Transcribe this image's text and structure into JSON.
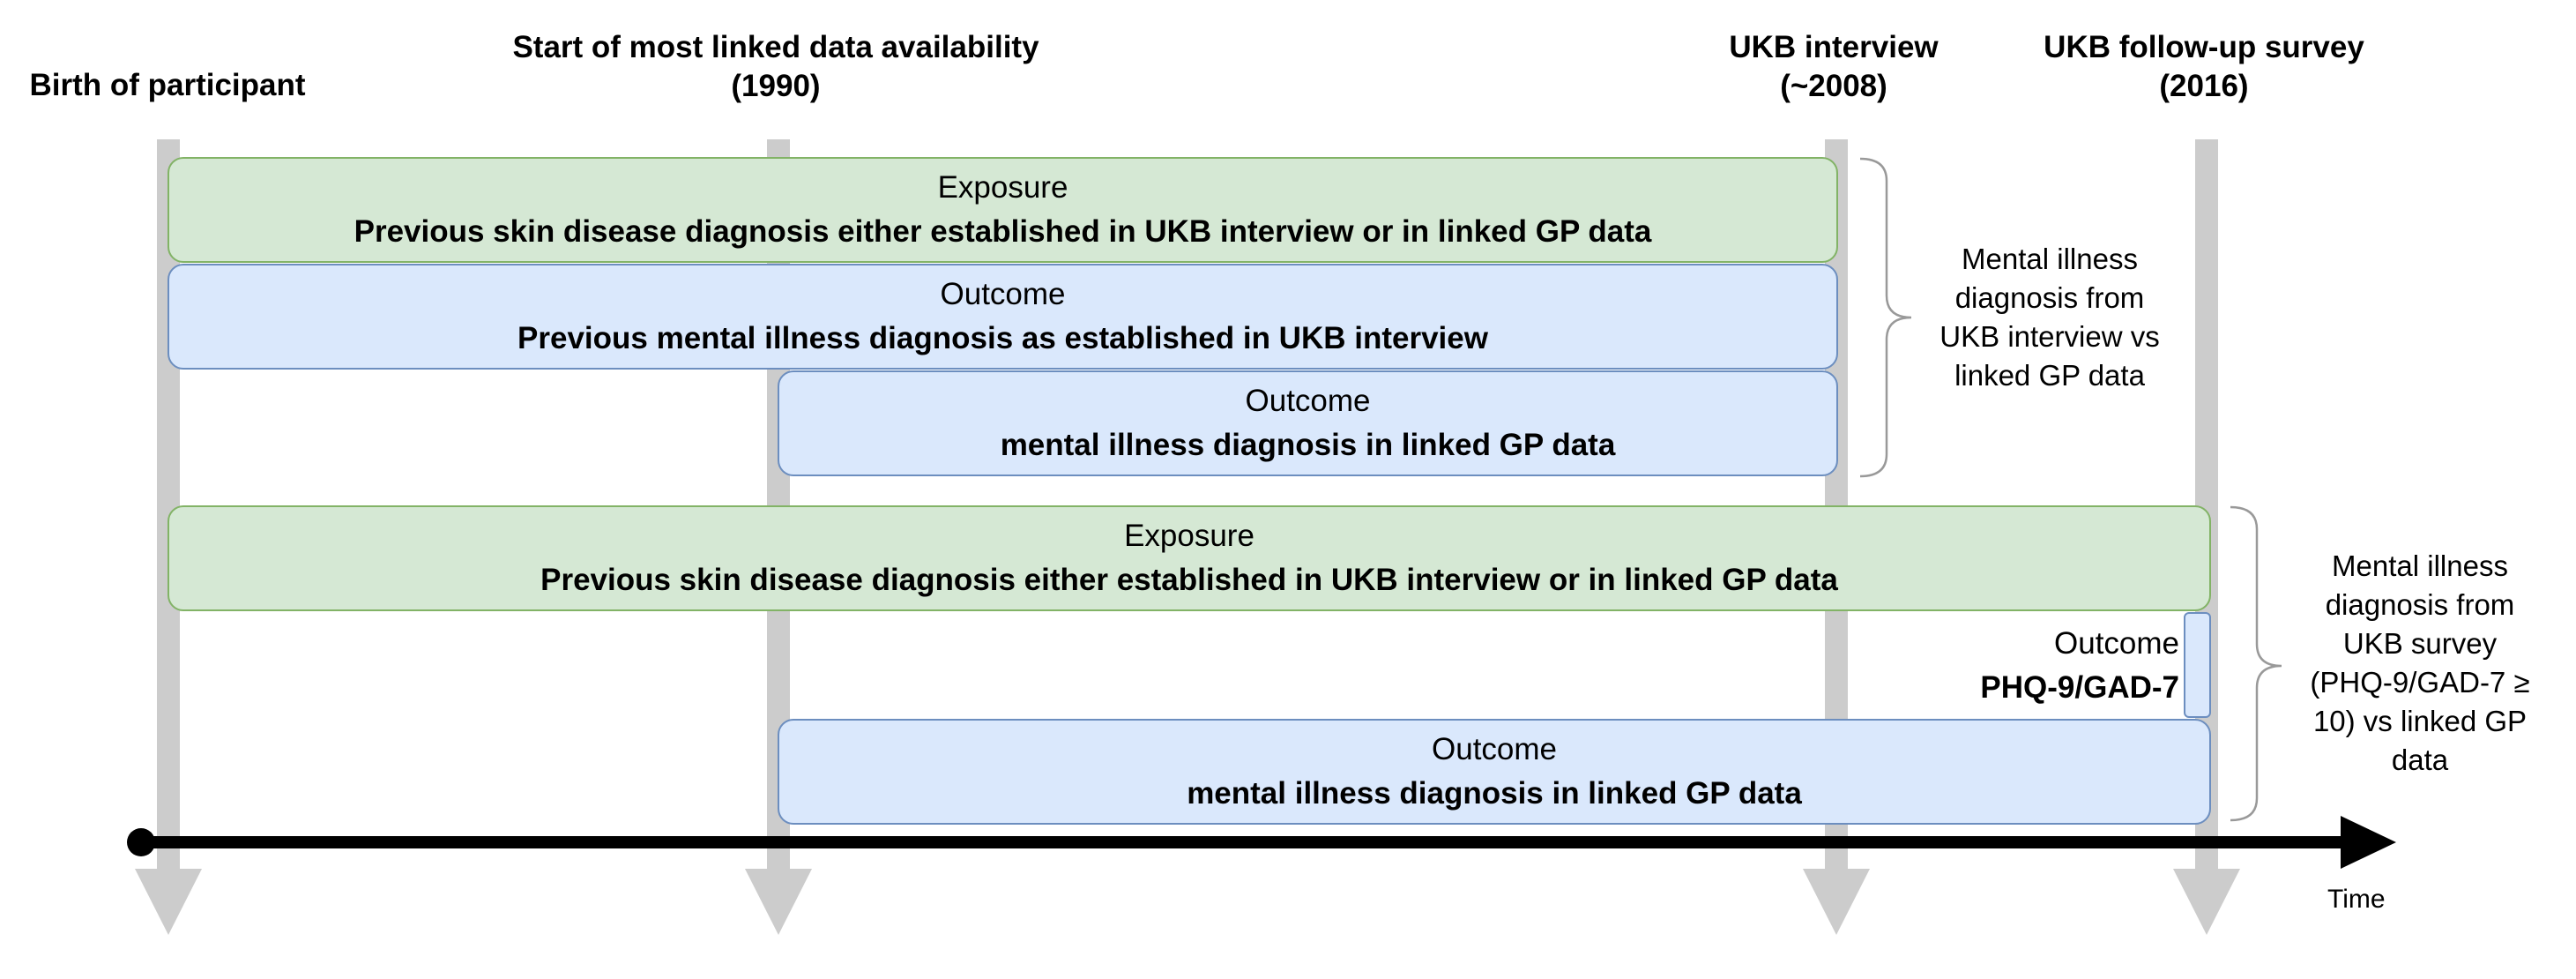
{
  "milestones": {
    "birth": {
      "lines": [
        "Birth of participant"
      ]
    },
    "linked_start": {
      "lines": [
        "Start of most linked data availability",
        "(1990)"
      ]
    },
    "ukb_interview": {
      "lines": [
        "UKB interview",
        "(~2008)"
      ]
    },
    "ukb_survey": {
      "lines": [
        "UKB follow-up survey",
        "(2016)"
      ]
    }
  },
  "group1": {
    "exposure": {
      "kind": "Exposure",
      "desc": "Previous skin disease diagnosis either established in UKB interview or in linked GP data"
    },
    "outcome_interview": {
      "kind": "Outcome",
      "desc": "Previous mental illness diagnosis as established in UKB interview"
    },
    "outcome_gp": {
      "kind": "Outcome",
      "desc": "mental illness diagnosis in linked GP data"
    },
    "bracket_label": [
      "Mental illness",
      "diagnosis from",
      "UKB interview vs",
      "linked GP data"
    ]
  },
  "group2": {
    "exposure": {
      "kind": "Exposure",
      "desc": "Previous skin disease diagnosis either established in UKB interview or in linked GP data"
    },
    "outcome_survey": {
      "kind": "Outcome",
      "desc": "PHQ-9/GAD-7"
    },
    "outcome_gp": {
      "kind": "Outcome",
      "desc": "mental illness diagnosis in linked GP data"
    },
    "bracket_label": [
      "Mental illness",
      "diagnosis from",
      "UKB survey",
      "(PHQ-9/GAD-7 ≥",
      "10) vs linked GP",
      "data"
    ]
  },
  "axis": {
    "label": "Time"
  },
  "colors": {
    "exposure_fill": "#d5e8d4",
    "exposure_border": "#82b366",
    "outcome_fill": "#dae8fc",
    "outcome_border": "#6c8ebf",
    "guide_line": "#cccccc",
    "axis": "#000000"
  }
}
